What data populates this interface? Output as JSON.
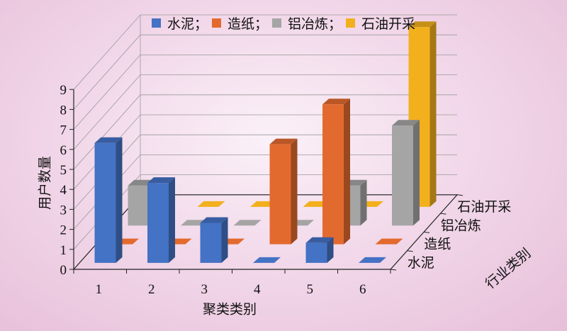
{
  "chart_data": {
    "type": "bar",
    "style": "3d-grouped",
    "xlabel": "聚类类别",
    "ylabel": "用户数量",
    "zlabel": "行业类别",
    "categories": [
      "1",
      "2",
      "3",
      "4",
      "5",
      "6"
    ],
    "ylim": [
      0,
      9
    ],
    "yticks": [
      "0",
      "1",
      "2",
      "3",
      "4",
      "5",
      "6",
      "7",
      "8",
      "9"
    ],
    "legend_position": "top",
    "series": [
      {
        "name": "水泥",
        "legend_label": "水泥；",
        "axis_label": "水泥",
        "color": "#4472c4",
        "values": [
          6,
          4,
          2,
          0,
          1,
          0
        ]
      },
      {
        "name": "造纸",
        "legend_label": "造纸；",
        "axis_label": "造纸",
        "color": "#e36a2e",
        "values": [
          0,
          0,
          0,
          5,
          7,
          0
        ]
      },
      {
        "name": "铝冶炼",
        "legend_label": "铝冶炼；",
        "axis_label": "铝冶炼",
        "color": "#a5a5a5",
        "values": [
          2,
          0,
          0,
          0,
          2,
          5
        ]
      },
      {
        "name": "石油开采",
        "legend_label": "石油开采",
        "axis_label": "石油开采",
        "color": "#f2b01d",
        "values": [
          0,
          0,
          0,
          0,
          0,
          9
        ]
      }
    ]
  }
}
